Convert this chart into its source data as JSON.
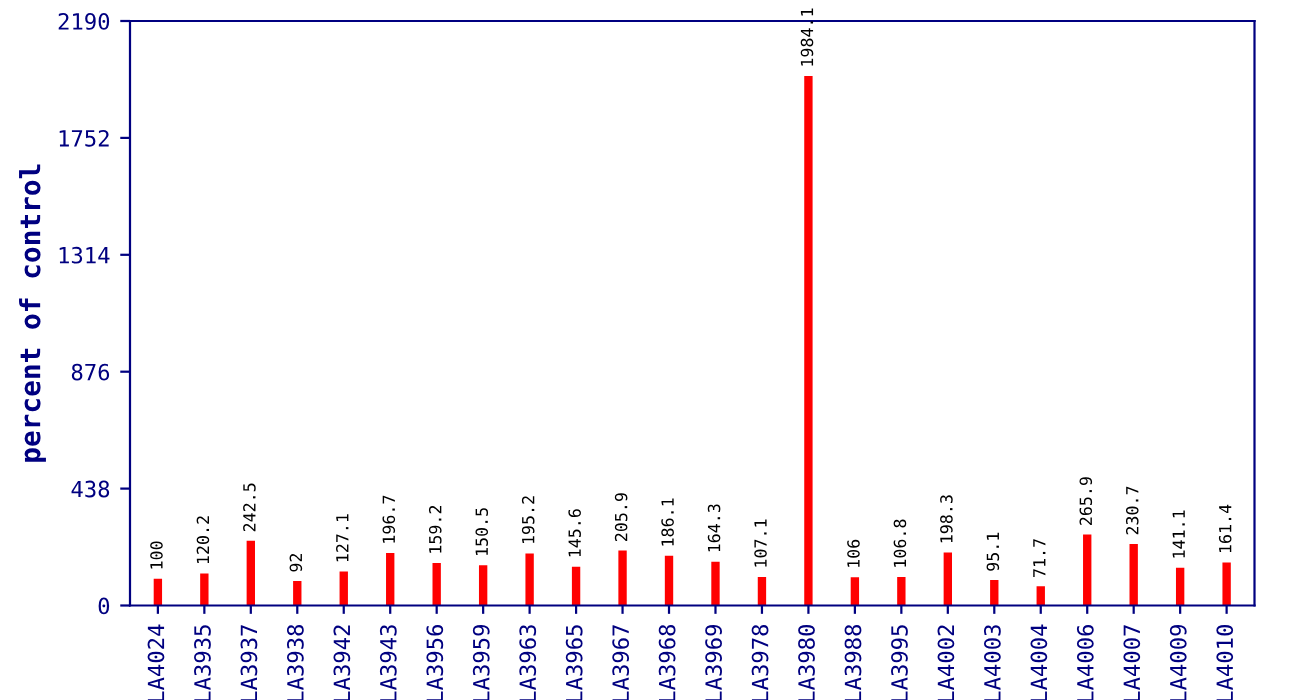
{
  "chart_data": {
    "type": "bar",
    "ylabel": "percent of control",
    "categories": [
      "LA4024",
      "LA3935",
      "LA3937",
      "LA3938",
      "LA3942",
      "LA3943",
      "LA3956",
      "LA3959",
      "LA3963",
      "LA3965",
      "LA3967",
      "LA3968",
      "LA3969",
      "LA3978",
      "LA3980",
      "LA3988",
      "LA3995",
      "LA4002",
      "LA4003",
      "LA4004",
      "LA4006",
      "LA4007",
      "LA4009",
      "LA4010"
    ],
    "values": [
      100,
      120.2,
      242.5,
      92,
      127.1,
      196.7,
      159.2,
      150.5,
      195.2,
      145.6,
      205.9,
      186.1,
      164.3,
      107.1,
      1984.1,
      106,
      106.8,
      198.3,
      95.1,
      71.7,
      265.9,
      230.7,
      141.1,
      161.4
    ],
    "color": "#ff0000",
    "data_labels": true,
    "ylim": [
      0,
      2190
    ],
    "yticks": [
      0,
      438,
      876,
      1314,
      1752,
      2190
    ],
    "grid": false
  }
}
